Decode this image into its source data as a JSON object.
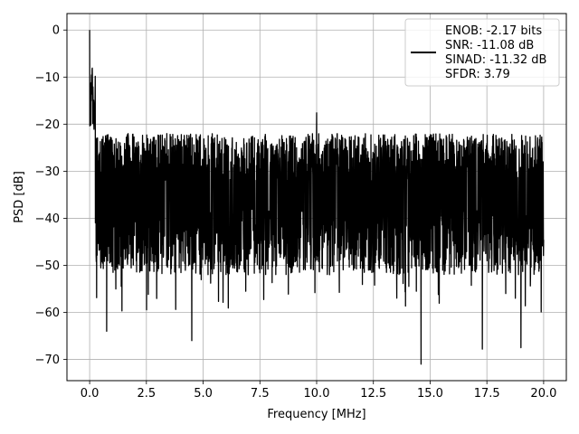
{
  "chart_data": {
    "type": "line",
    "title": "",
    "xlabel": "Frequency [MHz]",
    "ylabel": "PSD [dB]",
    "xlim": [
      -1.0,
      21.0
    ],
    "ylim": [
      -74.5,
      3.5
    ],
    "xticks": [
      0.0,
      2.5,
      5.0,
      7.5,
      10.0,
      12.5,
      15.0,
      17.5,
      20.0
    ],
    "xtick_labels": [
      "0.0",
      "2.5",
      "5.0",
      "7.5",
      "10.0",
      "12.5",
      "15.0",
      "17.5",
      "20.0"
    ],
    "yticks": [
      0,
      -10,
      -20,
      -30,
      -40,
      -50,
      -60,
      -70
    ],
    "ytick_labels": [
      "0",
      "−10",
      "−20",
      "−30",
      "−40",
      "−50",
      "−60",
      "−70"
    ],
    "grid": true,
    "legend_position": "top-right",
    "legend_lines": [
      "ENOB: -2.17 bits",
      "SNR: -11.08 dB",
      "SINAD: -11.32 dB",
      "SFDR: 3.79"
    ],
    "series": [
      {
        "color": "#000000",
        "description": "dense noisy spectrum",
        "x_range": [
          0.0,
          20.0
        ],
        "envelope": {
          "upper_approx": -25,
          "lower_approx": -50,
          "noise_floor_mean": -35
        },
        "peaks": [
          {
            "x": 0.0,
            "y": 0.0
          },
          {
            "x": 0.05,
            "y": -15.0
          },
          {
            "x": 0.2,
            "y": -19.0
          },
          {
            "x": 10.0,
            "y": -17.6
          }
        ],
        "minima": [
          {
            "x": 0.75,
            "y": -64.0
          },
          {
            "x": 4.5,
            "y": -66.0
          },
          {
            "x": 14.6,
            "y": -71.0
          },
          {
            "x": 17.3,
            "y": -67.8
          },
          {
            "x": 19.0,
            "y": -67.5
          }
        ]
      }
    ]
  }
}
